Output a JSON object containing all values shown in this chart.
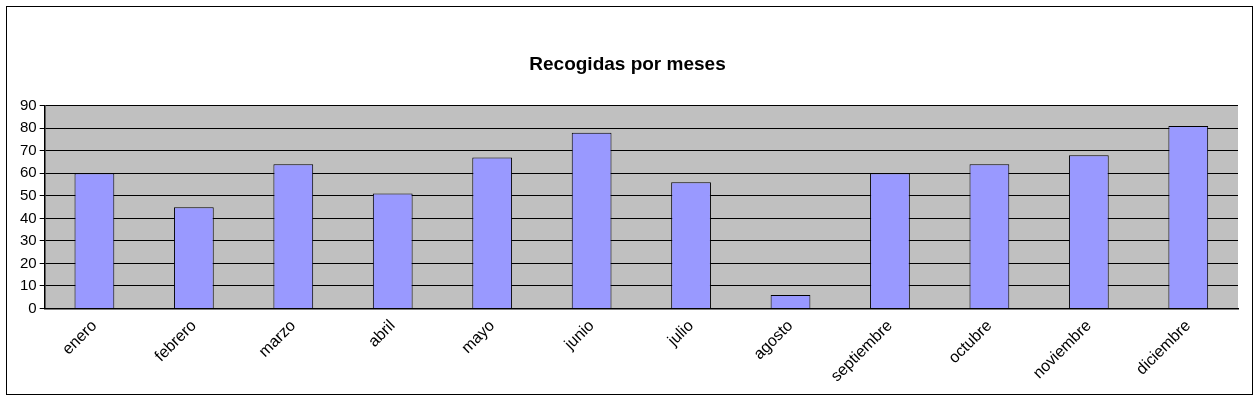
{
  "chart_data": {
    "type": "bar",
    "title": "Recogidas por meses",
    "categories": [
      "enero",
      "febrero",
      "marzo",
      "abril",
      "mayo",
      "junio",
      "julio",
      "agosto",
      "septiembre",
      "octubre",
      "noviembre",
      "diciembre"
    ],
    "values": [
      60,
      45,
      64,
      51,
      67,
      78,
      56,
      6,
      60,
      64,
      68,
      81
    ],
    "color": "#9999ff",
    "ylim": [
      0,
      90
    ],
    "yticks": [
      0,
      10,
      20,
      30,
      40,
      50,
      60,
      70,
      80,
      90
    ],
    "grid": "y",
    "legend": false
  }
}
